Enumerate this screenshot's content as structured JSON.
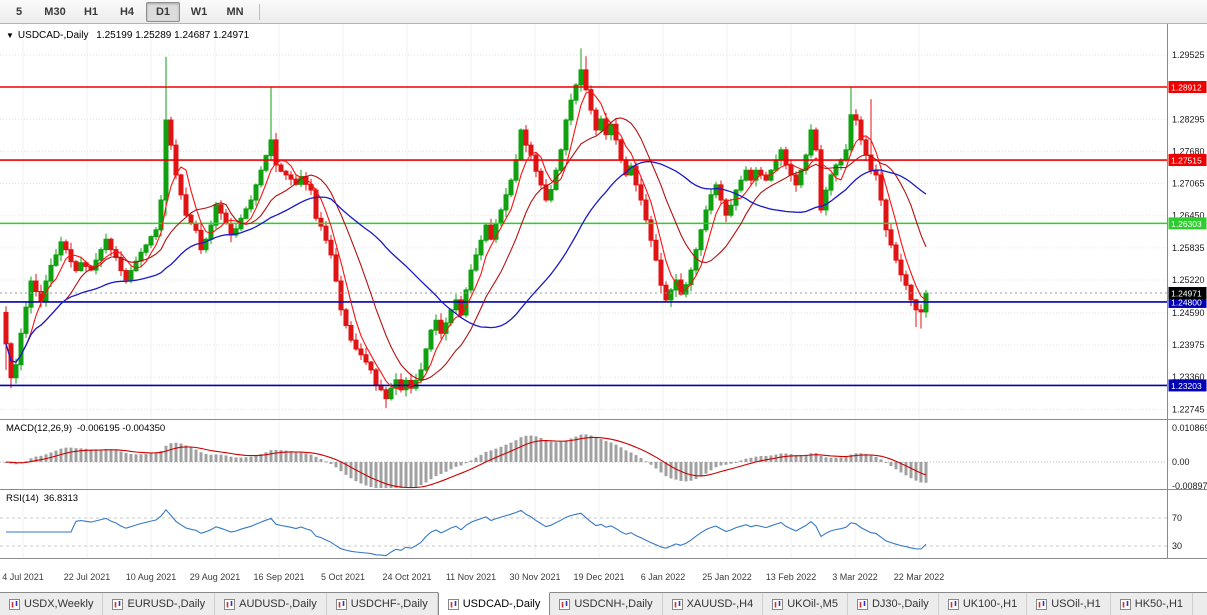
{
  "toolbar": {
    "timeframes": [
      {
        "label": "5",
        "active": false
      },
      {
        "label": "M30",
        "active": false
      },
      {
        "label": "H1",
        "active": false
      },
      {
        "label": "H4",
        "active": false
      },
      {
        "label": "D1",
        "active": true
      },
      {
        "label": "W1",
        "active": false
      },
      {
        "label": "MN",
        "active": false
      }
    ]
  },
  "header": {
    "symbol": "USDCAD-,Daily",
    "ohlc": "1.25199 1.25289 1.24687 1.24971"
  },
  "chart": {
    "type": "candlestick",
    "price_axis_ticks": [
      "1.29525",
      "1.28295",
      "1.27680",
      "1.27065",
      "1.26450",
      "1.25835",
      "1.25220",
      "1.24590",
      "1.23975",
      "1.23360",
      "1.22745"
    ],
    "levels": [
      {
        "price": 1.28912,
        "label": "1.28912",
        "color": "#ee0000"
      },
      {
        "price": 1.27515,
        "label": "1.27515",
        "color": "#ee0000"
      },
      {
        "price": 1.26303,
        "label": "1.26303",
        "color": "#2ecc2e"
      },
      {
        "price": 1.248,
        "label": "1.24800",
        "color": "#0000b4"
      },
      {
        "price": 1.23203,
        "label": "1.23203",
        "color": "#0000b4"
      }
    ],
    "current": {
      "price": 1.24971,
      "label": "1.24971",
      "color": "#000000"
    },
    "dates": [
      "4 Jul 2021",
      "22 Jul 2021",
      "10 Aug 2021",
      "29 Aug 2021",
      "16 Sep 2021",
      "5 Oct 2021",
      "24 Oct 2021",
      "11 Nov 2021",
      "30 Nov 2021",
      "19 Dec 2021",
      "6 Jan 2022",
      "25 Jan 2022",
      "13 Feb 2022",
      "3 Mar 2022",
      "22 Mar 2022"
    ],
    "first_open": 1.246,
    "closes": [
      1.24,
      1.2335,
      1.236,
      1.242,
      1.247,
      1.252,
      1.25,
      1.248,
      1.252,
      1.255,
      1.257,
      1.2595,
      1.258,
      1.2557,
      1.254,
      1.2555,
      1.2548,
      1.2541,
      1.256,
      1.258,
      1.26,
      1.258,
      1.2565,
      1.254,
      1.2522,
      1.254,
      1.2558,
      1.2575,
      1.2589,
      1.2605,
      1.2618,
      1.2675,
      1.2828,
      1.278,
      1.2723,
      1.2685,
      1.2646,
      1.263,
      1.2617,
      1.258,
      1.26,
      1.2627,
      1.2666,
      1.265,
      1.263,
      1.2608,
      1.262,
      1.264,
      1.2658,
      1.2675,
      1.2704,
      1.2732,
      1.276,
      1.279,
      1.2742,
      1.273,
      1.2723,
      1.2715,
      1.2705,
      1.272,
      1.2705,
      1.2694,
      1.264,
      1.2625,
      1.2598,
      1.257,
      1.252,
      1.2465,
      1.2435,
      1.2407,
      1.239,
      1.2379,
      1.2365,
      1.235,
      1.2321,
      1.2312,
      1.2295,
      1.2315,
      1.2331,
      1.2312,
      1.233,
      1.2315,
      1.233,
      1.235,
      1.239,
      1.2426,
      1.2445,
      1.242,
      1.244,
      1.2465,
      1.2484,
      1.2455,
      1.2503,
      1.2541,
      1.257,
      1.2598,
      1.2627,
      1.26,
      1.263,
      1.2656,
      1.2685,
      1.2713,
      1.2752,
      1.2809,
      1.278,
      1.2761,
      1.273,
      1.2704,
      1.2675,
      1.2695,
      1.2732,
      1.2771,
      1.2828,
      1.2866,
      1.2895,
      1.2924,
      1.2886,
      1.2847,
      1.2809,
      1.283,
      1.28,
      1.282,
      1.279,
      1.2752,
      1.2723,
      1.274,
      1.2704,
      1.2675,
      1.2637,
      1.2598,
      1.256,
      1.2512,
      1.2484,
      1.2503,
      1.2522,
      1.2495,
      1.2513,
      1.2541,
      1.258,
      1.2618,
      1.2656,
      1.2685,
      1.2704,
      1.2675,
      1.2646,
      1.2665,
      1.2694,
      1.2713,
      1.2732,
      1.2713,
      1.2732,
      1.2723,
      1.2713,
      1.2732,
      1.2752,
      1.2771,
      1.2742,
      1.2723,
      1.2704,
      1.2732,
      1.2761,
      1.2809,
      1.2771,
      1.2656,
      1.2694,
      1.2723,
      1.2742,
      1.2752,
      1.2771,
      1.2838,
      1.2828,
      1.279,
      1.2761,
      1.2732,
      1.2723,
      1.2675,
      1.2618,
      1.2589,
      1.256,
      1.2532,
      1.2512,
      1.2484,
      1.2465,
      1.2461,
      1.24971
    ],
    "wicks": {
      "0": {
        "low": 1.235
      },
      "1": {
        "low": 1.2315
      },
      "32": {
        "high": 1.2949,
        "low": 1.2645
      },
      "53": {
        "high": 1.2891
      },
      "76": {
        "low": 1.2277
      },
      "115": {
        "high": 1.2965
      },
      "116": {
        "high": 1.295
      },
      "169": {
        "high": 1.289
      },
      "173": {
        "high": 1.2868
      },
      "182": {
        "low": 1.2432
      },
      "183": {
        "low": 1.2429
      },
      "184": {
        "low": 1.245
      }
    }
  },
  "macd": {
    "name": "MACD(12,26,9)",
    "values": "-0.006195 -0.004350",
    "axis": [
      "0.010869",
      "0.00",
      "-0.008974"
    ]
  },
  "rsi": {
    "name": "RSI(14)",
    "value": "36.8313",
    "axis": [
      "70",
      "30"
    ]
  },
  "tabs": [
    {
      "label": "USDX,Weekly",
      "active": false
    },
    {
      "label": "EURUSD-,Daily",
      "active": false
    },
    {
      "label": "AUDUSD-,Daily",
      "active": false
    },
    {
      "label": "USDCHF-,Daily",
      "active": false
    },
    {
      "label": "USDCAD-,Daily",
      "active": true
    },
    {
      "label": "USDCNH-,Daily",
      "active": false
    },
    {
      "label": "XAUUSD-,H4",
      "active": false
    },
    {
      "label": "UKOil-,M5",
      "active": false
    },
    {
      "label": "DJ30-,Daily",
      "active": false
    },
    {
      "label": "UK100-,H1",
      "active": false
    },
    {
      "label": "USOil-,H1",
      "active": false
    },
    {
      "label": "HK50-,H1",
      "active": false
    }
  ],
  "colors": {
    "up": "#0fa10f",
    "down": "#e01414",
    "ma_fast": "#ff1111",
    "ma_mid": "#b51010",
    "ma_slow": "#1a1ac8",
    "macd_hist": "#a0a0a0",
    "macd_signal": "#cc0000",
    "rsi_line": "#3579c8",
    "grid": "#e2e2e2",
    "axis_text": "#1a1a1a"
  }
}
